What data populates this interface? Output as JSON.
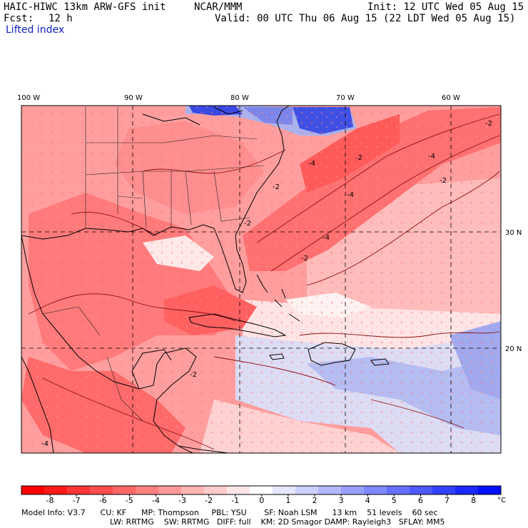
{
  "header": {
    "model_title": "HAIC-HIWC 13km ARW-GFS init",
    "org": "NCAR/MMM",
    "init": "Init: 12 UTC Wed 05 Aug 15",
    "fcst_label": "Fcst:",
    "fcst_value": "12 h",
    "valid": "Valid: 00 UTC Thu 06 Aug 15 (22 LDT Wed 05 Aug 15)",
    "field": "Lifted index"
  },
  "map": {
    "lon_labels": [
      "100 W",
      "90 W",
      "80 W",
      "70 W",
      "60 W"
    ],
    "lat_labels": [
      "30 N",
      "20 N"
    ],
    "contour_labels": [
      "-2",
      "-4",
      "-2",
      "-4",
      "-2",
      "-4",
      "-2",
      "-2",
      "-4",
      "-2",
      "-2",
      "-4"
    ],
    "colors": {
      "strong_unstable": "#ff5a5a",
      "unstable": "#ff8c8c",
      "weak_unstable": "#ffbcbc",
      "neutral": "#ffe6e6",
      "stable": "#c8cdf5",
      "strong_stable": "#3040e0"
    }
  },
  "colorbar": {
    "ticks": [
      "-8",
      "-7",
      "-6",
      "-5",
      "-4",
      "-3",
      "-2",
      "-1",
      "0",
      "1",
      "2",
      "3",
      "4",
      "5",
      "6",
      "7",
      "8"
    ],
    "unit": "°C",
    "colors": [
      "#ff0000",
      "#ff1a1a",
      "#ff3535",
      "#ff4d4d",
      "#ff6666",
      "#ff8080",
      "#ff9999",
      "#ffb3b3",
      "#ffcccc",
      "#ffe6e6",
      "#ffffff",
      "#e6e8ff",
      "#ccd0ff",
      "#b3b8ff",
      "#99a0ff",
      "#8088ff",
      "#6670ff",
      "#4d58ff",
      "#3340ff",
      "#1a28ff",
      "#0010ff"
    ]
  },
  "model_info": {
    "line1": "Model Info: V3.7      CU: KF      MP: Thompson     PBL: YSU       SF: Noah LSM      13 km    51 levels    60 sec",
    "line2": "LW: RRTMG    SW: RRTMG   DIFF: full    KM: 2D Smagor DAMP: Rayleigh3   SFLAY: MM5"
  }
}
